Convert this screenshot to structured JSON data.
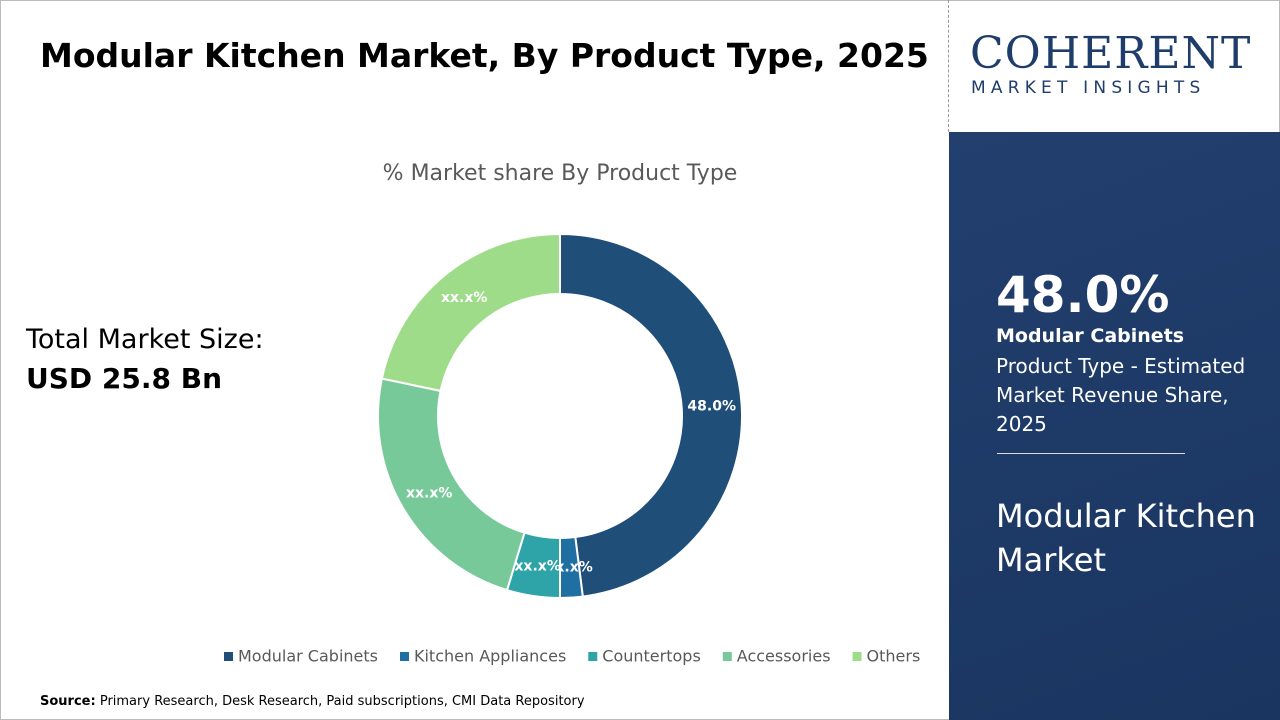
{
  "header": {
    "title": "Modular Kitchen Market, By Product Type, 2025"
  },
  "market_size": {
    "label": "Total Market Size:",
    "value": "USD 25.8 Bn"
  },
  "logo": {
    "name": "COHERENT",
    "tagline": "MARKET INSIGHTS"
  },
  "sidebar": {
    "share": "48.0%",
    "segment": "Modular Cabinets",
    "description": "Product Type - Estimated Market Revenue Share, 2025",
    "market": "Modular Kitchen Market"
  },
  "source": {
    "label": "Source:",
    "text": "Primary Research, Desk Research, Paid subscriptions, CMI Data Repository"
  },
  "chart_data": {
    "type": "donut",
    "title": "% Market share By Product Type",
    "categories": [
      "Modular Cabinets",
      "Kitchen Appliances",
      "Countertops",
      "Accessories",
      "Others"
    ],
    "values": [
      48.0,
      2.0,
      4.7,
      23.6,
      21.7
    ],
    "value_labels": [
      "48.0%",
      "xx.x%",
      "xx.x%",
      "xx.x%",
      "xx.x%"
    ],
    "colors": [
      "#1f4e79",
      "#1f6fa3",
      "#2ea3a8",
      "#78c99a",
      "#9edc8a"
    ],
    "legend": "bottom"
  }
}
